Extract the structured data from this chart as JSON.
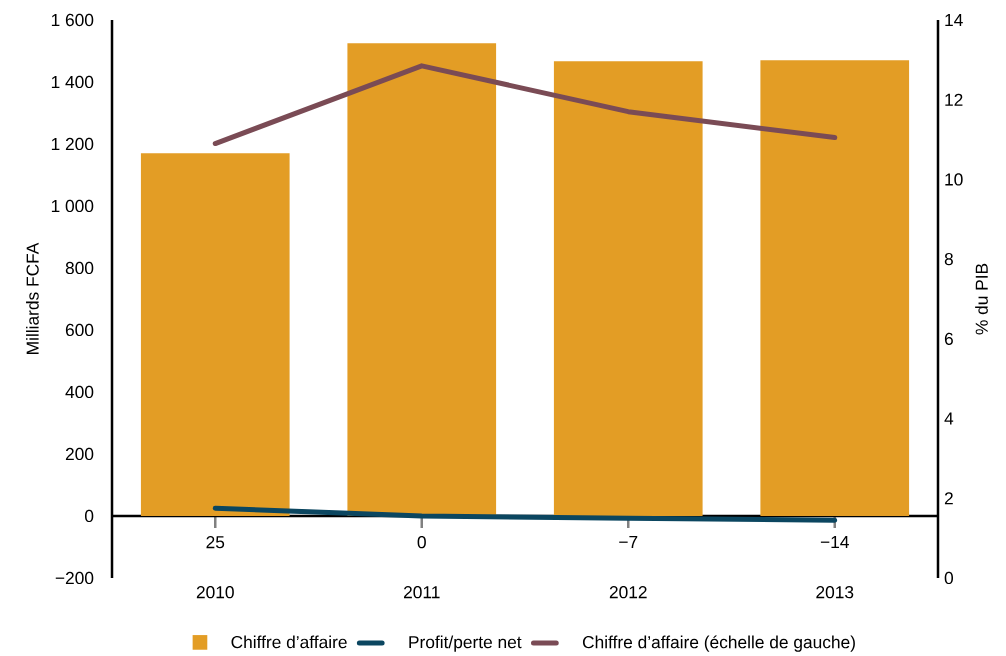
{
  "chart_data": {
    "type": "bar",
    "categories": [
      "2010",
      "2011",
      "2012",
      "2013"
    ],
    "ylabel": "Milliards FCFA",
    "y2label": "% du PIB",
    "ylim": [
      -200,
      1600
    ],
    "yticks": [
      {
        "value": -200,
        "label": "−200"
      },
      0,
      200,
      400,
      600,
      800,
      {
        "value": 1000,
        "label": "1 000"
      },
      {
        "value": 1200,
        "label": "1 200"
      },
      {
        "value": 1400,
        "label": "1 400"
      },
      {
        "value": 1600,
        "label": "1 600"
      }
    ],
    "y2lim": [
      0,
      14
    ],
    "y2ticks": [
      0,
      2,
      4,
      6,
      8,
      10,
      12,
      14
    ],
    "legend": "bottom",
    "series": [
      {
        "name": "Chiffre d’affaire",
        "color": "#e39d25",
        "values": [
          1170,
          1525,
          1467,
          1470
        ]
      },
      {
        "name": "Profit/perte net",
        "type": "line",
        "color": "#0b4660",
        "values": [
          25,
          0,
          -7,
          -14
        ],
        "value_labels": [
          "25",
          "0",
          "−7",
          "−14"
        ]
      },
      {
        "name": "Chiffre d’affaire (échelle de gauche)",
        "type": "line",
        "axis": "y2",
        "color": "#7a4b55",
        "values": [
          10.9,
          12.85,
          11.7,
          11.05
        ]
      }
    ]
  }
}
